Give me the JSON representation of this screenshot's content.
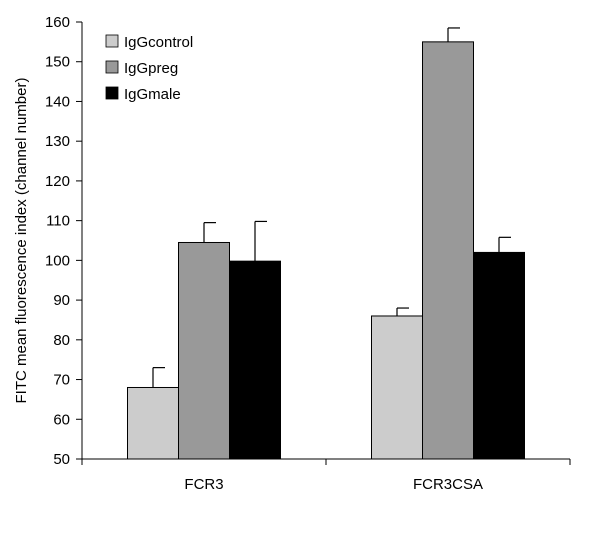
{
  "chart_data": {
    "type": "bar",
    "title": "",
    "xlabel": "",
    "ylabel": "FITC mean fluorescence index (channel number)",
    "categories": [
      "FCR3",
      "FCR3CSA"
    ],
    "ylim": [
      50,
      160
    ],
    "yticks": [
      50,
      60,
      70,
      80,
      90,
      100,
      110,
      120,
      130,
      140,
      150,
      160
    ],
    "series": [
      {
        "name": "IgGcontrol",
        "color": "#cccccc",
        "values": [
          68,
          86
        ],
        "error": [
          5,
          2
        ]
      },
      {
        "name": "IgGpreg",
        "color": "#999999",
        "values": [
          104.5,
          155
        ],
        "error": [
          5,
          3.5
        ]
      },
      {
        "name": "IgGmale",
        "color": "#000000",
        "values": [
          99.8,
          102
        ],
        "error": [
          10,
          3.8
        ]
      }
    ],
    "legend": "top-left",
    "grid": false
  }
}
